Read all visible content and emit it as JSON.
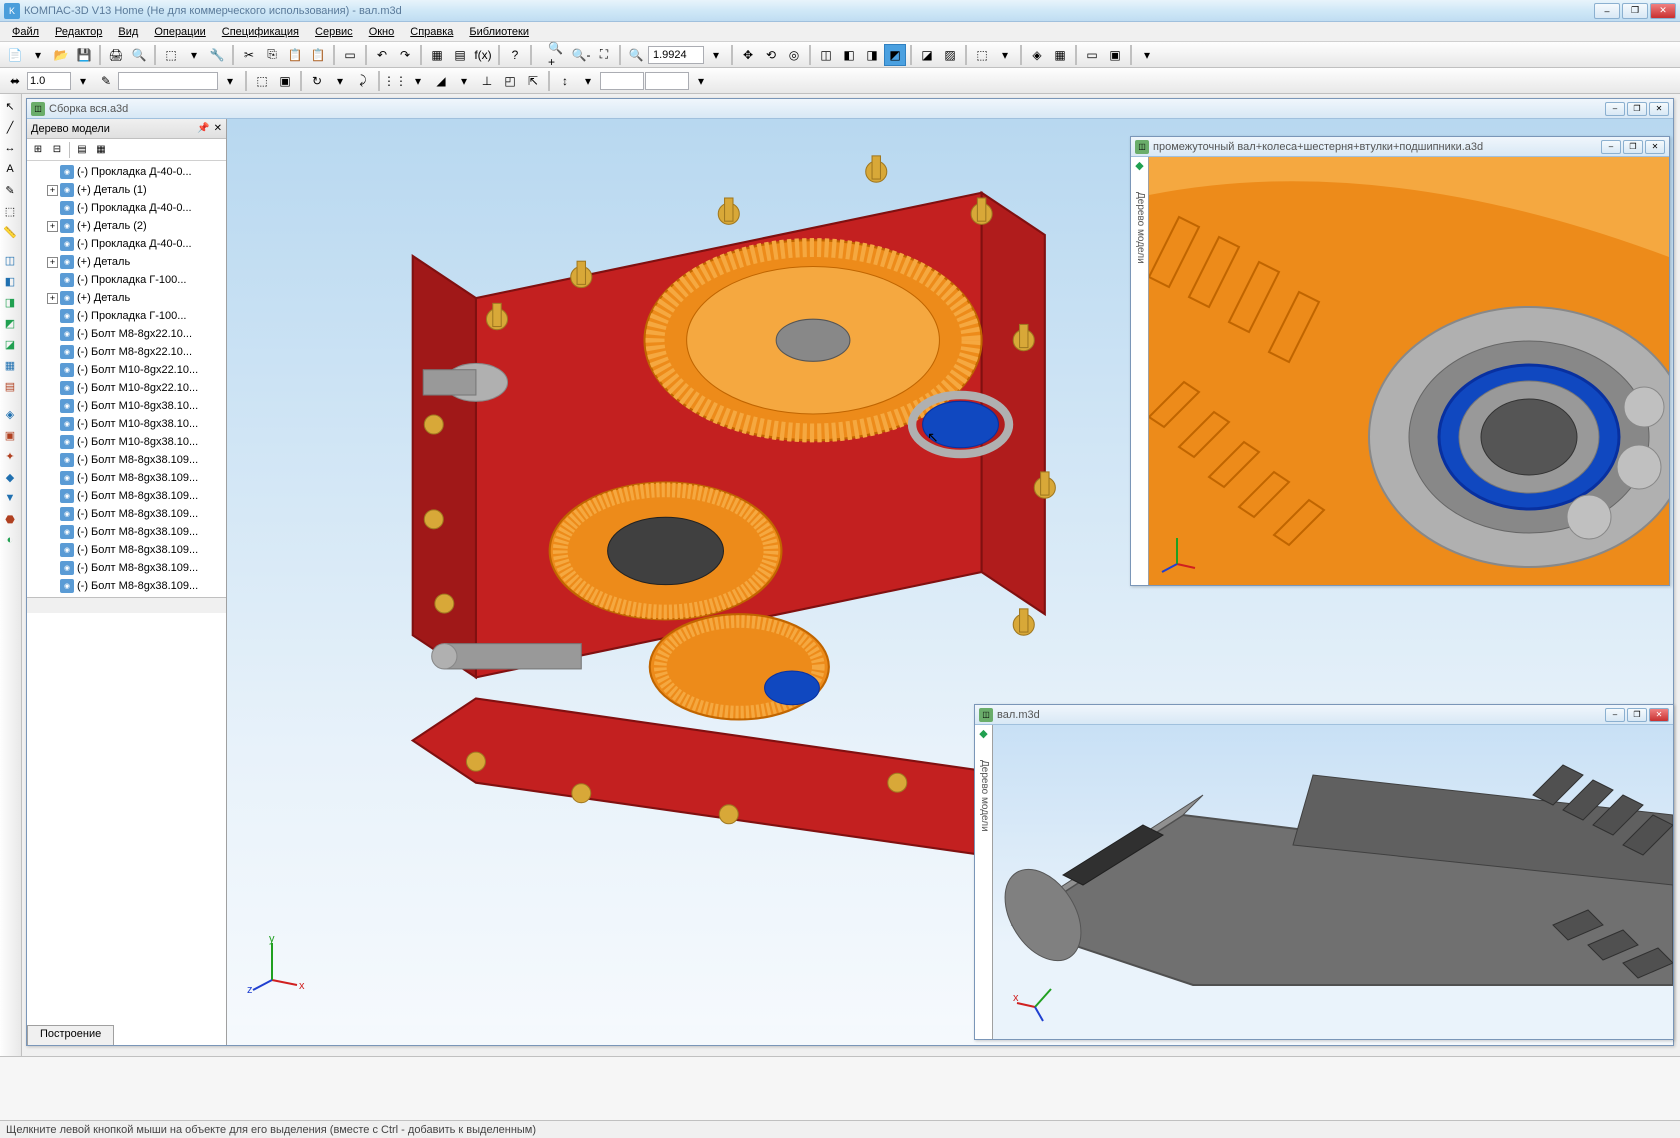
{
  "app": {
    "title": "КОМПАС-3D V13 Home (Не для коммерческого использования) - вал.m3d",
    "icon_letter": "K"
  },
  "menu": {
    "items": [
      "Файл",
      "Редактор",
      "Вид",
      "Операции",
      "Спецификация",
      "Сервис",
      "Окно",
      "Справка",
      "Библиотеки"
    ]
  },
  "toolbar1": {
    "zoom_value": "1.9924"
  },
  "toolbar2": {
    "value1": "1.0"
  },
  "tree": {
    "title": "Дерево модели",
    "items": [
      {
        "exp": "",
        "label": "(-) Прокладка Д-40-0..."
      },
      {
        "exp": "+",
        "label": "(+) Деталь (1)"
      },
      {
        "exp": "",
        "label": "(-) Прокладка Д-40-0..."
      },
      {
        "exp": "+",
        "label": "(+) Деталь (2)"
      },
      {
        "exp": "",
        "label": "(-) Прокладка Д-40-0..."
      },
      {
        "exp": "+",
        "label": "(+) Деталь"
      },
      {
        "exp": "",
        "label": "(-) Прокладка Г-100..."
      },
      {
        "exp": "+",
        "label": "(+) Деталь"
      },
      {
        "exp": "",
        "label": "(-) Прокладка Г-100..."
      },
      {
        "exp": "",
        "label": "(-) Болт М8-8gx22.10..."
      },
      {
        "exp": "",
        "label": "(-) Болт М8-8gx22.10..."
      },
      {
        "exp": "",
        "label": "(-) Болт M10-8gx22.10..."
      },
      {
        "exp": "",
        "label": "(-) Болт M10-8gx22.10..."
      },
      {
        "exp": "",
        "label": "(-) Болт M10-8gx38.10..."
      },
      {
        "exp": "",
        "label": "(-) Болт M10-8gx38.10..."
      },
      {
        "exp": "",
        "label": "(-) Болт M10-8gx38.10..."
      },
      {
        "exp": "",
        "label": "(-) Болт М8-8gx38.109..."
      },
      {
        "exp": "",
        "label": "(-) Болт М8-8gx38.109..."
      },
      {
        "exp": "",
        "label": "(-) Болт М8-8gx38.109..."
      },
      {
        "exp": "",
        "label": "(-) Болт М8-8gx38.109..."
      },
      {
        "exp": "",
        "label": "(-) Болт М8-8gx38.109..."
      },
      {
        "exp": "",
        "label": "(-) Болт М8-8gx38.109..."
      },
      {
        "exp": "",
        "label": "(-) Болт М8-8gx38.109..."
      },
      {
        "exp": "",
        "label": "(-) Болт М8-8gx38.109..."
      },
      {
        "exp": "",
        "label": "(-) Болт М8.8gx38.109..."
      }
    ]
  },
  "mdi": {
    "win1": {
      "title": "Сборка вся.a3d"
    },
    "win2": {
      "title": "промежуточный вал+колеса+шестерня+втулки+подшипники.a3d"
    },
    "win3": {
      "title": "вал.m3d"
    }
  },
  "collapsed_tree_label": "Дерево модели",
  "model_tab": "Построение",
  "status": "Щелкните левой кнопкой мыши на объекте для его выделения (вместе с Ctrl - добавить к выделенным)",
  "colors": {
    "housing": "#c32020",
    "gear_orange": "#ed8b1a",
    "gear_light": "#f5a840",
    "shaft": "#888888",
    "bolt": "#d8a838",
    "blue": "#1048c0",
    "bearing": "#b0b0b0"
  },
  "axis_labels": {
    "x": "x",
    "y": "y",
    "z": "z"
  }
}
